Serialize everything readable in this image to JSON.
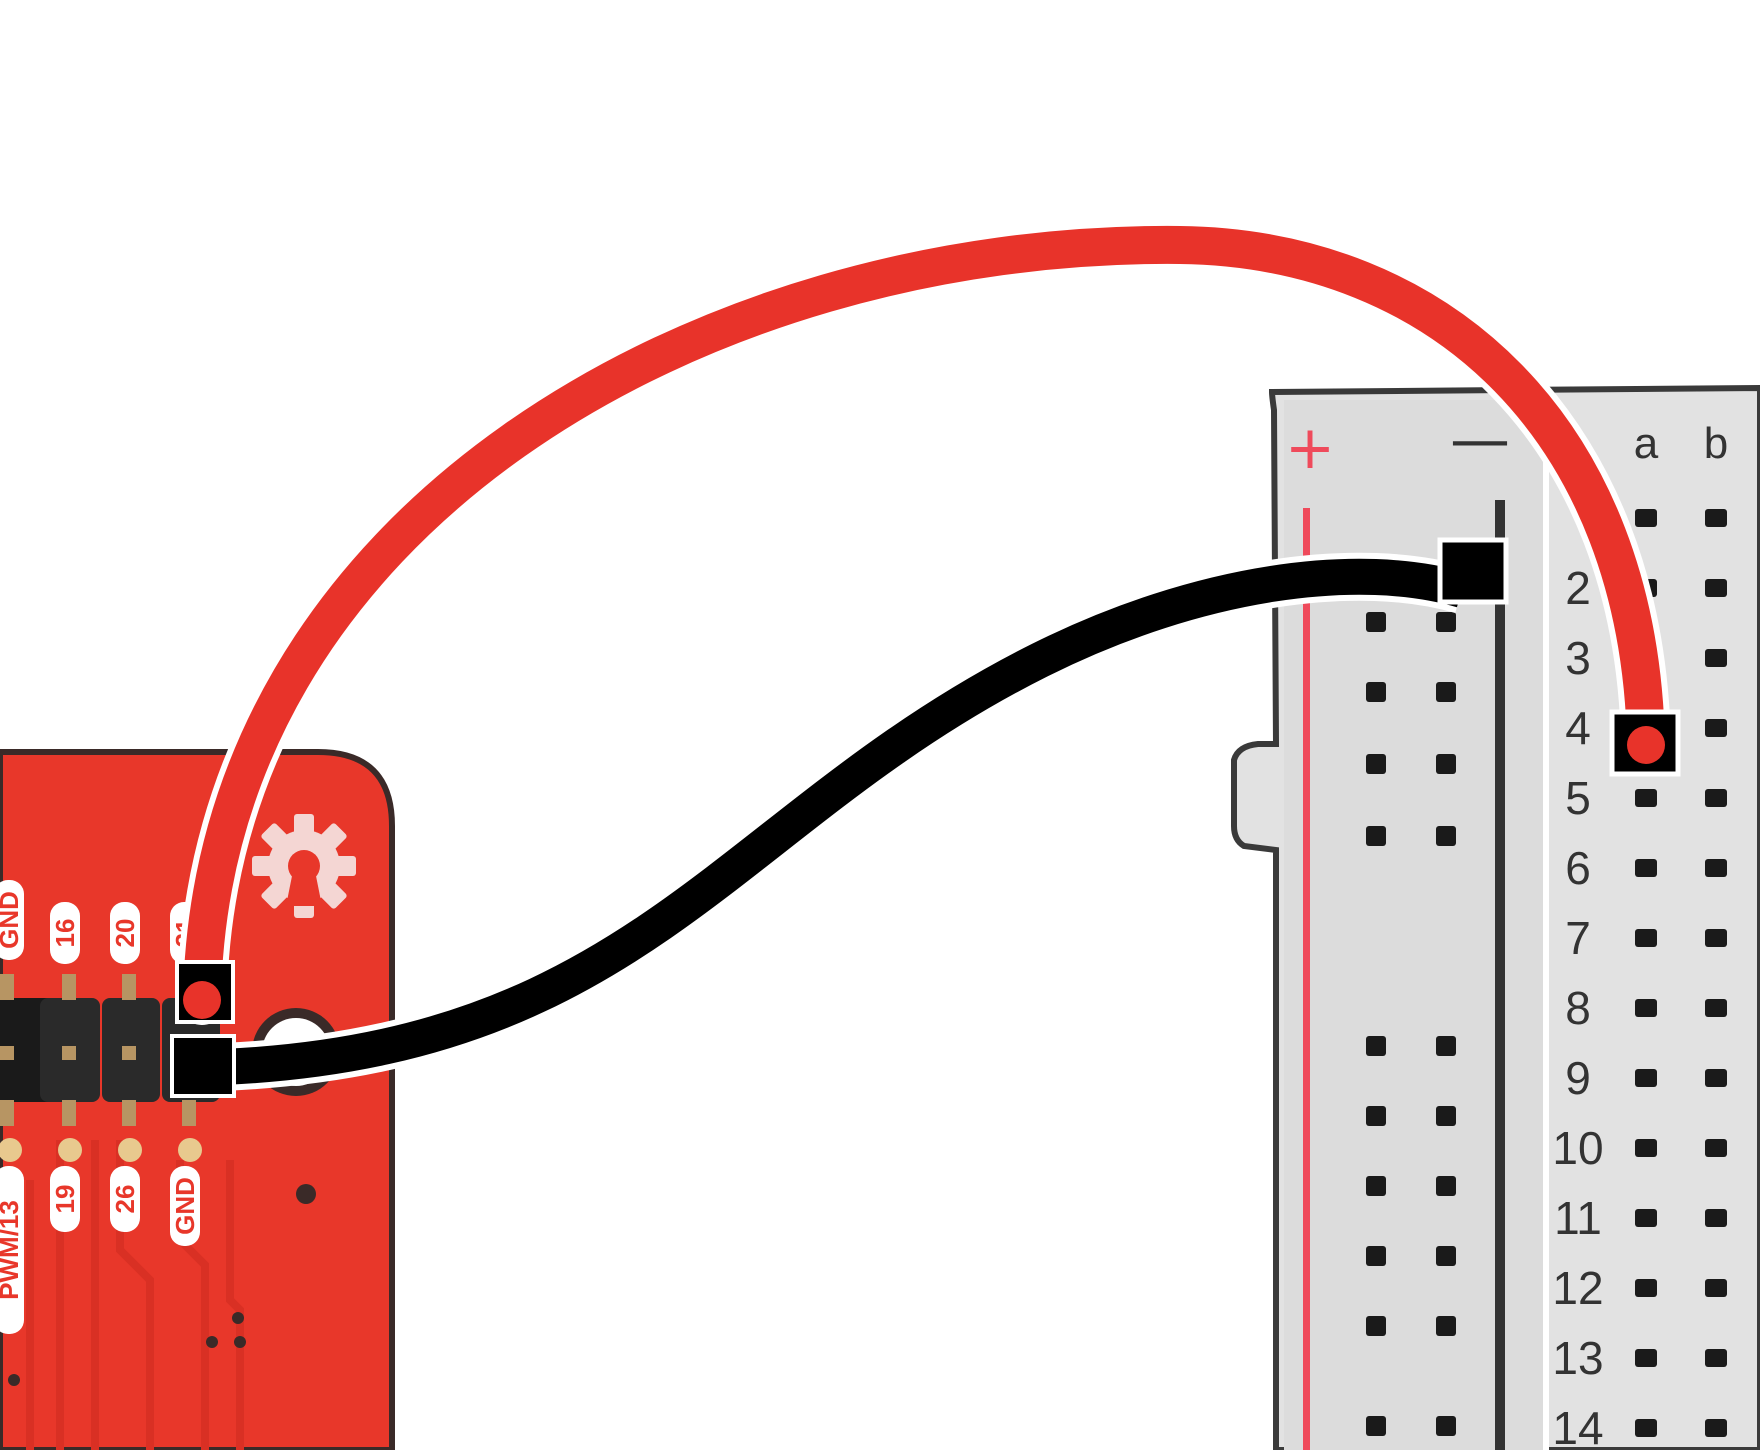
{
  "board": {
    "color": "#e8372a",
    "labels_top": [
      "GND",
      "16",
      "20",
      "21"
    ],
    "labels_bottom": [
      "PWM/13",
      "19",
      "26",
      "GND"
    ],
    "icon": "open-hardware-gear-icon"
  },
  "breadboard": {
    "color": "#d9d9d9",
    "rail_plus": "+",
    "rail_minus": "—",
    "rail_plus_color": "#ef4a5b",
    "columns": [
      "a",
      "b"
    ],
    "rows": [
      "2",
      "3",
      "4",
      "5",
      "6",
      "7",
      "8",
      "9",
      "10",
      "11",
      "12",
      "13",
      "14"
    ]
  },
  "wires": [
    {
      "name": "red-wire",
      "color": "#e8332a",
      "from": "board pin 21",
      "to": "breadboard a4"
    },
    {
      "name": "black-wire",
      "color": "#000000",
      "from": "board GND",
      "to": "breadboard negative rail"
    }
  ]
}
